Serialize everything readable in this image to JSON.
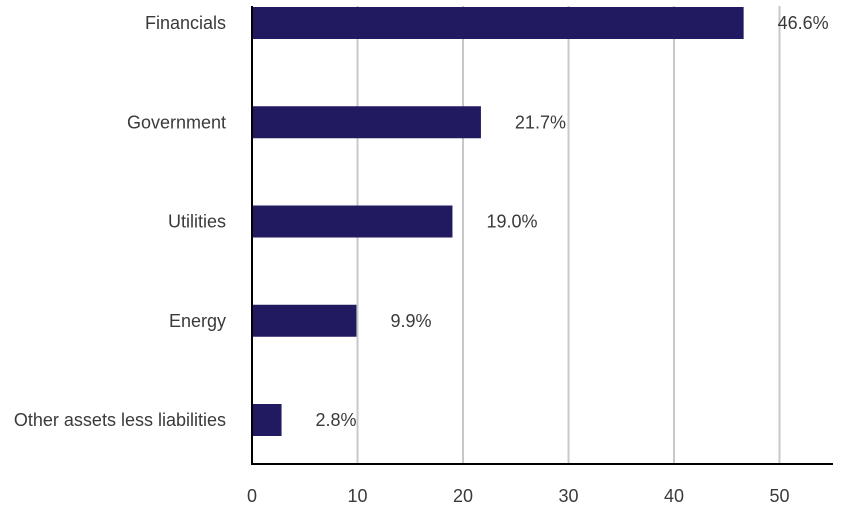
{
  "chart_data": {
    "type": "bar",
    "orientation": "horizontal",
    "categories": [
      "Financials",
      "Government",
      "Utilities",
      "Energy",
      "Other assets less liabilities"
    ],
    "values": [
      46.6,
      21.7,
      19.0,
      9.9,
      2.8
    ],
    "value_labels": [
      "46.6%",
      "21.7%",
      "19.0%",
      "9.9%",
      "2.8%"
    ],
    "xlim": [
      0,
      55
    ],
    "xticks": [
      0,
      10,
      20,
      30,
      40,
      50
    ],
    "xtick_labels": [
      "0",
      "10",
      "20",
      "30",
      "40",
      "50"
    ],
    "grid": "vertical",
    "legend": "none",
    "colors": {
      "bar": "#211a60",
      "grid": "#c8c8c8",
      "axis": "#000000",
      "text": "#3a3a3a"
    }
  }
}
